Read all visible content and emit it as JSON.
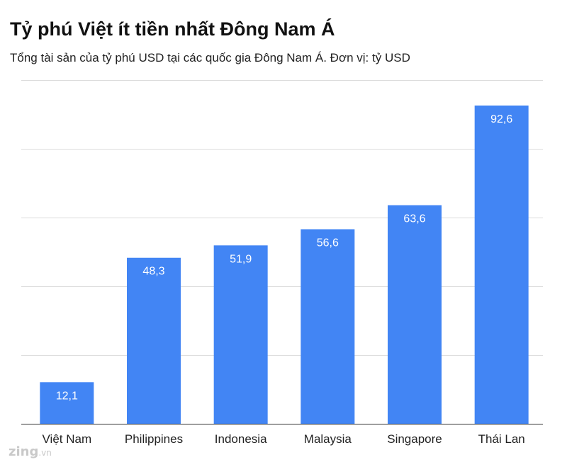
{
  "chart_data": {
    "type": "bar",
    "title": "Tỷ phú Việt ít tiền nhất Đông Nam Á",
    "subtitle": "Tổng tài sản của tỷ phú USD tại các quốc gia Đông Nam Á. Đơn vị: tỷ USD",
    "categories": [
      "Việt Nam",
      "Philippines",
      "Indonesia",
      "Malaysia",
      "Singapore",
      "Thái Lan"
    ],
    "values": [
      12.1,
      48.3,
      51.9,
      56.6,
      63.6,
      92.6
    ],
    "value_labels": [
      "12,1",
      "48,3",
      "51,9",
      "56,6",
      "63,6",
      "92,6"
    ],
    "xlabel": "",
    "ylabel": "",
    "ylim": [
      0,
      100
    ],
    "grid": true,
    "bar_color": "#4285f4"
  },
  "watermark": {
    "brand": "zing",
    "suffix": ".vn"
  }
}
